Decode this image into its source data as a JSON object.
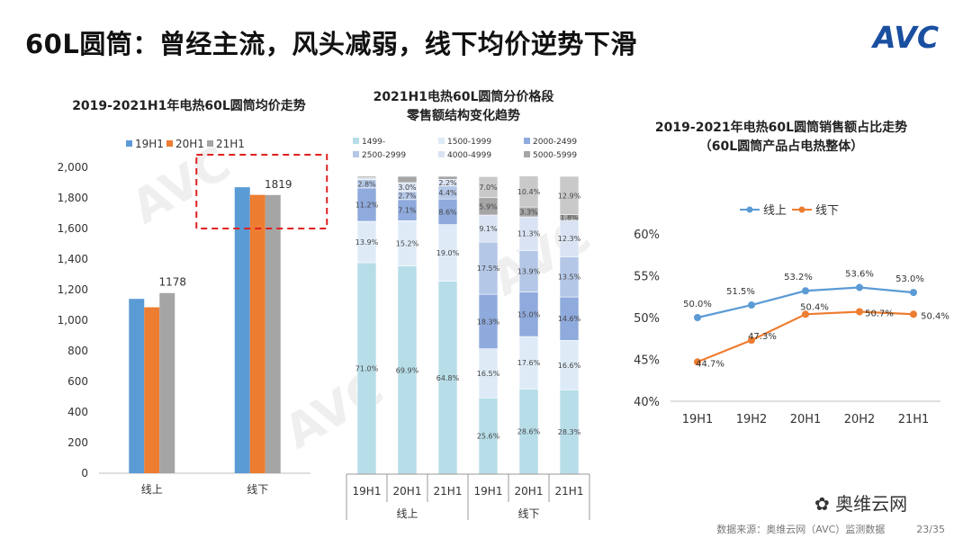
{
  "page": {
    "title": "60L圆筒：曾经主流，风头减弱，线下均价逆势下滑",
    "logo": "AVC",
    "footer": "数据来源：奥维云网（AVC）监测数据",
    "page_number": "23/35",
    "wechat": "奥维云网"
  },
  "chart_data": [
    {
      "type": "bar",
      "title": "2019-2021H1年电热60L圆筒均价走势",
      "categories": [
        "线上",
        "线下"
      ],
      "series": [
        {
          "name": "19H1",
          "color": "#5b9bd5",
          "values": [
            1140,
            1870
          ]
        },
        {
          "name": "20H1",
          "color": "#ed7d31",
          "values": [
            1085,
            1820
          ]
        },
        {
          "name": "21H1",
          "color": "#a5a5a5",
          "values": [
            1178,
            1819
          ]
        }
      ],
      "data_labels": [
        {
          "category": "线上",
          "series": "21H1",
          "text": "1178"
        },
        {
          "category": "线下",
          "series": "21H1",
          "text": "1819"
        }
      ],
      "ylim": [
        0,
        2000
      ],
      "yticks": [
        "0",
        "200",
        "400",
        "600",
        "800",
        "1,000",
        "1,200",
        "1,400",
        "1,600",
        "1,800",
        "2,000"
      ],
      "highlight": "线下"
    },
    {
      "type": "bar",
      "stacked": "percent",
      "title": [
        "2021H1电热60L圆筒分价格段",
        "零售额结构变化趋势"
      ],
      "categories": [
        "19H1",
        "20H1",
        "21H1",
        "19H1",
        "20H1",
        "21H1"
      ],
      "groups": [
        "线上",
        "线下"
      ],
      "series": [
        {
          "name": "1499-",
          "color": "#b7dde8",
          "values": [
            71.0,
            69.9,
            64.8,
            25.6,
            28.6,
            28.3
          ],
          "labels": [
            "71.0%",
            "69.9%",
            "64.8%",
            "25.6%",
            "28.6%",
            "28.3%"
          ]
        },
        {
          "name": "1500-1999",
          "color": "#deebf7",
          "values": [
            13.9,
            15.2,
            19.0,
            16.5,
            17.6,
            16.6
          ],
          "labels": [
            "13.9%",
            "15.2%",
            "19.0%",
            "16.5%",
            "17.6%",
            "16.6%"
          ]
        },
        {
          "name": "2000-2499",
          "color": "#8faadc",
          "values": [
            11.2,
            7.1,
            8.6,
            18.3,
            15.0,
            14.6
          ],
          "labels": [
            "11.2%",
            "7.1%",
            "8.6%",
            "18.3%",
            "15.0%",
            "14.6%"
          ]
        },
        {
          "name": "2500-2999",
          "color": "#b4c7e7",
          "values": [
            2.8,
            2.7,
            4.4,
            17.5,
            13.9,
            13.5
          ],
          "labels": [
            "2.8%",
            "2.7%",
            "4.4%",
            "17.5%",
            "13.9%",
            "13.5%"
          ]
        },
        {
          "name": "4000-4999",
          "color": "#dae3f3",
          "values": [
            0.6,
            3.0,
            2.2,
            9.1,
            11.3,
            12.3
          ],
          "labels": [
            "",
            "3.0%",
            "2.2%",
            "9.1%",
            "11.3%",
            "12.3%"
          ]
        },
        {
          "name": "5000-5999",
          "color": "#a6a6a6",
          "values": [
            0.5,
            2.1,
            1.0,
            5.9,
            3.3,
            1.8
          ],
          "labels": [
            "",
            "",
            "",
            "5.9%",
            "3.3%",
            "1.8%"
          ]
        },
        {
          "name": "",
          "color": "#c9c9c9",
          "values": [
            0.0,
            0.0,
            0.0,
            7.0,
            10.4,
            12.9
          ],
          "labels": [
            "",
            "",
            "",
            "7.0%",
            "10.4%",
            "12.9%"
          ]
        }
      ],
      "ylim": [
        0,
        100
      ]
    },
    {
      "type": "line",
      "title": [
        "2019-2021年电热60L圆筒销售额占比走势",
        "（60L圆筒产品占电热整体）"
      ],
      "x": [
        "19H1",
        "19H2",
        "20H1",
        "20H2",
        "21H1"
      ],
      "series": [
        {
          "name": "线上",
          "color": "#5b9bd5",
          "values": [
            50.0,
            51.5,
            53.2,
            53.6,
            53.0
          ],
          "labels": [
            "50.0%",
            "51.5%",
            "53.2%",
            "53.6%",
            "53.0%"
          ]
        },
        {
          "name": "线下",
          "color": "#ed7d31",
          "values": [
            44.7,
            47.3,
            50.4,
            50.7,
            50.4
          ],
          "labels": [
            "44.7%",
            "47.3%",
            "50.4%",
            "50.7%",
            "50.4%"
          ]
        }
      ],
      "ylim": [
        40,
        60
      ],
      "yticks": [
        "40%",
        "45%",
        "50%",
        "55%",
        "60%"
      ]
    }
  ]
}
